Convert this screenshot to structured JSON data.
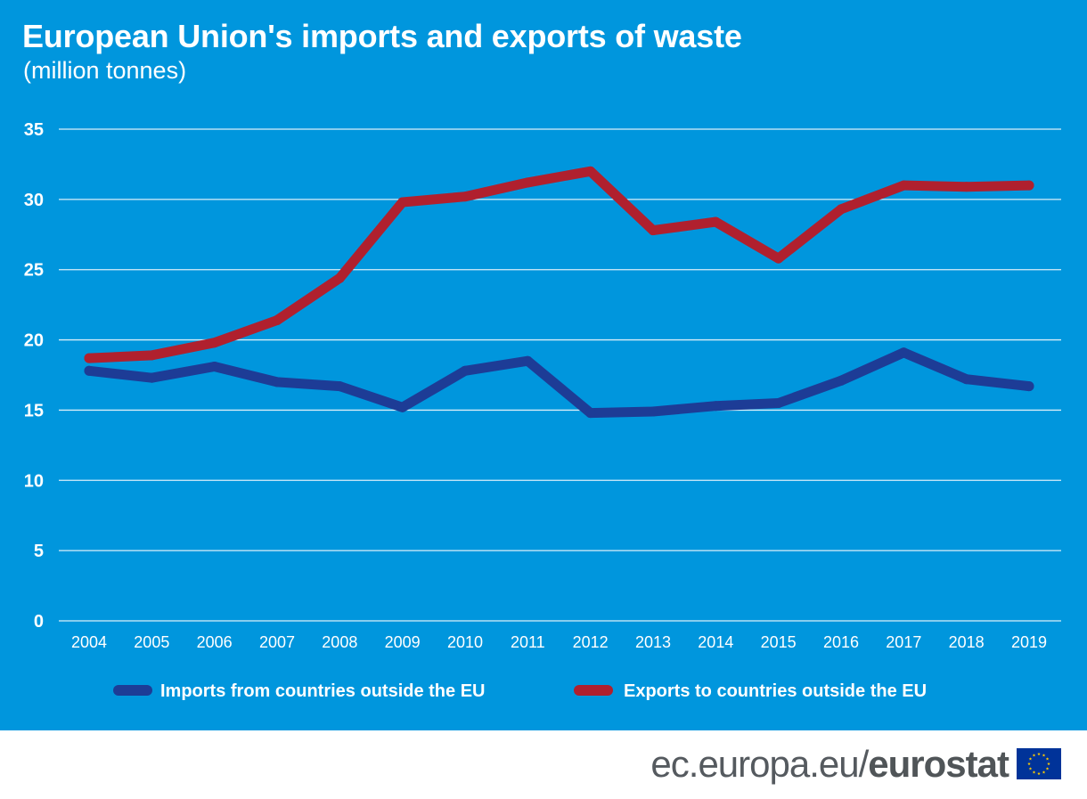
{
  "header": {
    "title": "European Union's imports and exports of waste",
    "subtitle": "(million tonnes)"
  },
  "footer": {
    "site": "ec.europa.eu/",
    "brand": "eurostat",
    "logo_icon": "eu-flag-icon"
  },
  "colors": {
    "background": "#0096dd",
    "imports": "#1d3c96",
    "exports": "#b0202e",
    "gridlines": "#d9eef9",
    "text": "#ffffff"
  },
  "chart_data": {
    "type": "line",
    "title": "European Union's imports and exports of waste",
    "subtitle": "(million tonnes)",
    "xlabel": "",
    "ylabel": "",
    "x": [
      "2004",
      "2005",
      "2006",
      "2007",
      "2008",
      "2009",
      "2010",
      "2011",
      "2012",
      "2013",
      "2014",
      "2015",
      "2016",
      "2017",
      "2018",
      "2019"
    ],
    "ylim": [
      0,
      35
    ],
    "yticks": [
      0,
      5,
      10,
      15,
      20,
      25,
      30,
      35
    ],
    "grid": true,
    "legend_position": "bottom",
    "series": [
      {
        "name": "Imports from countries outside the EU",
        "color": "#1d3c96",
        "values": [
          17.8,
          17.3,
          18.1,
          17.0,
          16.7,
          15.2,
          17.8,
          18.5,
          14.8,
          14.9,
          15.3,
          15.5,
          17.1,
          19.1,
          17.2,
          16.7
        ]
      },
      {
        "name": "Exports to countries outside the EU",
        "color": "#b0202e",
        "values": [
          18.7,
          18.9,
          19.8,
          21.4,
          24.4,
          29.8,
          30.2,
          31.2,
          32.0,
          27.8,
          28.4,
          25.8,
          29.3,
          31.0,
          30.9,
          31.0
        ]
      }
    ]
  }
}
